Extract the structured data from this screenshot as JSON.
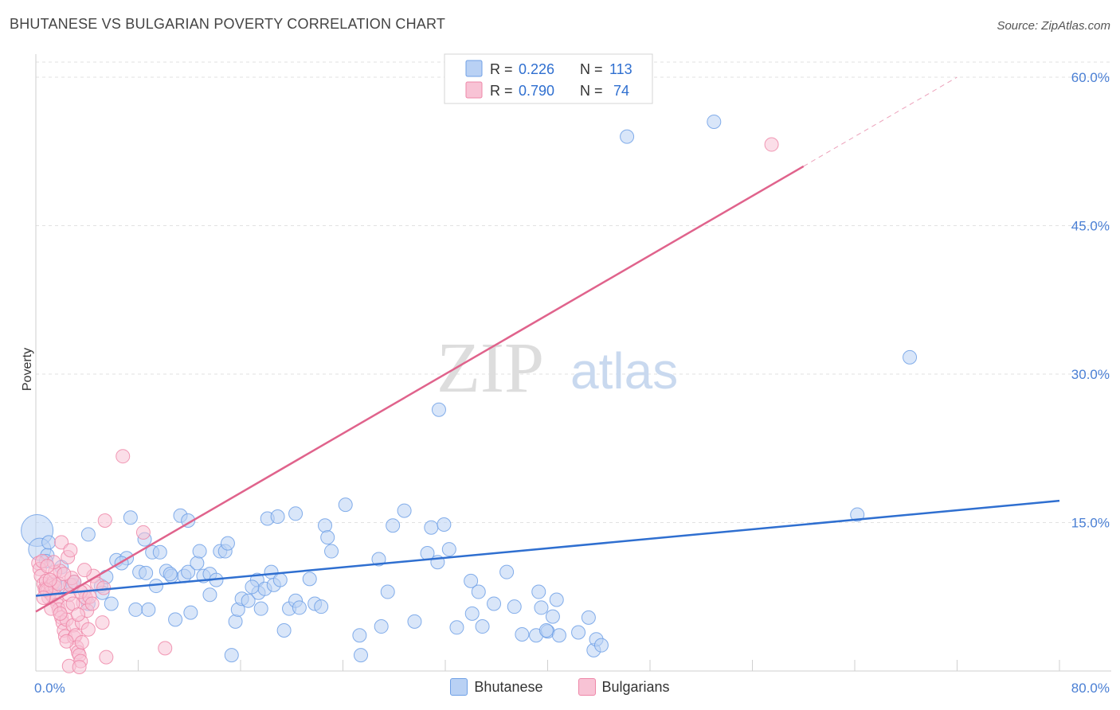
{
  "header": {
    "title": "BHUTANESE VS BULGARIAN POVERTY CORRELATION CHART",
    "source": "Source: ZipAtlas.com"
  },
  "watermark": {
    "zip": "ZIP",
    "atlas": "atlas"
  },
  "colors": {
    "blue": "#6fa0e6",
    "blue_fill": "#b9d1f4",
    "blue_line": "#2f6fd0",
    "pink": "#ee87a8",
    "pink_fill": "#f8c3d5",
    "pink_line": "#e0638c",
    "tick_text": "#4a7fd4"
  },
  "legend": {
    "series": [
      {
        "name": "Bhutanese",
        "r_label": "R =",
        "r_value": "0.226",
        "n_label": "N =",
        "n_value": "113"
      },
      {
        "name": "Bulgarians",
        "r_label": "R =",
        "r_value": "0.790",
        "n_label": "N =",
        "n_value": "74"
      }
    ]
  },
  "chart_data": {
    "type": "scatter",
    "title": "BHUTANESE VS BULGARIAN POVERTY CORRELATION CHART",
    "xlabel": "",
    "ylabel": "Poverty",
    "xlim": [
      0,
      80
    ],
    "ylim": [
      0,
      60
    ],
    "x_ticks": [
      {
        "value": 0,
        "label": "0.0%"
      },
      {
        "value": 80,
        "label": "80.0%"
      }
    ],
    "y_ticks": [
      {
        "value": 15,
        "label": "15.0%"
      },
      {
        "value": 30,
        "label": "30.0%"
      },
      {
        "value": 45,
        "label": "45.0%"
      },
      {
        "value": 60,
        "label": "60.0%"
      }
    ],
    "series": [
      {
        "name": "Bhutanese",
        "r": 0.226,
        "n": 113,
        "trend": {
          "x0": 0,
          "y0": 7.6,
          "x1": 80,
          "y1": 17.2
        },
        "points": [
          [
            0.1,
            14.2
          ],
          [
            0.3,
            12.3
          ],
          [
            0.9,
            11.7
          ],
          [
            0.8,
            11.1
          ],
          [
            2.3,
            8.5
          ],
          [
            1.5,
            8.8
          ],
          [
            2.9,
            8.7
          ],
          [
            4.1,
            6.8
          ],
          [
            4.1,
            13.8
          ],
          [
            5.1,
            8.6
          ],
          [
            5.9,
            6.8
          ],
          [
            5.2,
            7.9
          ],
          [
            6.3,
            11.2
          ],
          [
            7.1,
            11.4
          ],
          [
            6.7,
            10.9
          ],
          [
            7.4,
            15.5
          ],
          [
            7.8,
            6.2
          ],
          [
            8.1,
            10.0
          ],
          [
            8.6,
            9.9
          ],
          [
            8.8,
            6.2
          ],
          [
            9.1,
            12.0
          ],
          [
            9.7,
            12.0
          ],
          [
            9.4,
            8.6
          ],
          [
            10.2,
            10.1
          ],
          [
            10.6,
            9.6
          ],
          [
            10.9,
            5.2
          ],
          [
            11.6,
            9.6
          ],
          [
            11.9,
            10.0
          ],
          [
            12.1,
            5.9
          ],
          [
            11.3,
            15.7
          ],
          [
            11.9,
            15.2
          ],
          [
            12.6,
            10.9
          ],
          [
            12.8,
            12.1
          ],
          [
            13.1,
            9.6
          ],
          [
            13.6,
            9.8
          ],
          [
            13.6,
            7.7
          ],
          [
            14.1,
            9.2
          ],
          [
            14.4,
            12.1
          ],
          [
            14.8,
            12.1
          ],
          [
            15.0,
            12.9
          ],
          [
            15.3,
            1.6
          ],
          [
            15.6,
            5.0
          ],
          [
            15.8,
            6.2
          ],
          [
            16.1,
            7.3
          ],
          [
            16.6,
            7.1
          ],
          [
            17.3,
            9.2
          ],
          [
            17.4,
            7.9
          ],
          [
            17.6,
            6.3
          ],
          [
            17.9,
            8.3
          ],
          [
            18.1,
            15.4
          ],
          [
            18.4,
            10.0
          ],
          [
            18.9,
            15.6
          ],
          [
            18.6,
            8.7
          ],
          [
            19.1,
            9.2
          ],
          [
            19.4,
            4.1
          ],
          [
            19.8,
            6.3
          ],
          [
            20.3,
            7.1
          ],
          [
            20.6,
            6.4
          ],
          [
            20.3,
            15.9
          ],
          [
            21.4,
            9.3
          ],
          [
            21.8,
            6.8
          ],
          [
            22.3,
            6.5
          ],
          [
            22.6,
            14.7
          ],
          [
            22.8,
            13.5
          ],
          [
            23.1,
            12.1
          ],
          [
            24.2,
            16.8
          ],
          [
            25.3,
            3.6
          ],
          [
            25.4,
            1.6
          ],
          [
            26.8,
            11.3
          ],
          [
            27.0,
            4.5
          ],
          [
            27.5,
            8.0
          ],
          [
            27.9,
            14.7
          ],
          [
            28.8,
            16.2
          ],
          [
            29.6,
            5.0
          ],
          [
            30.6,
            11.9
          ],
          [
            30.9,
            14.5
          ],
          [
            31.4,
            11.0
          ],
          [
            31.5,
            26.4
          ],
          [
            31.9,
            14.8
          ],
          [
            32.3,
            12.3
          ],
          [
            32.9,
            4.4
          ],
          [
            34.1,
            5.8
          ],
          [
            34.0,
            9.1
          ],
          [
            34.6,
            8.0
          ],
          [
            34.9,
            4.5
          ],
          [
            35.8,
            6.8
          ],
          [
            36.8,
            10.0
          ],
          [
            37.4,
            6.5
          ],
          [
            38.0,
            3.7
          ],
          [
            39.1,
            3.6
          ],
          [
            39.5,
            6.4
          ],
          [
            39.3,
            8.0
          ],
          [
            40.0,
            4.0
          ],
          [
            40.7,
            7.2
          ],
          [
            40.9,
            3.6
          ],
          [
            39.9,
            4.1
          ],
          [
            40.4,
            5.5
          ],
          [
            42.4,
            3.9
          ],
          [
            43.6,
            2.1
          ],
          [
            43.2,
            5.4
          ],
          [
            43.8,
            3.2
          ],
          [
            44.2,
            2.6
          ],
          [
            46.2,
            54.0
          ],
          [
            53.0,
            55.5
          ],
          [
            68.3,
            31.7
          ],
          [
            64.2,
            15.8
          ],
          [
            1.0,
            13.0
          ],
          [
            2.0,
            10.5
          ],
          [
            3.0,
            9.0
          ],
          [
            5.5,
            9.5
          ],
          [
            8.5,
            13.3
          ],
          [
            10.5,
            9.8
          ],
          [
            16.9,
            8.5
          ]
        ]
      },
      {
        "name": "Bulgarians",
        "r": 0.79,
        "n": 74,
        "trend": {
          "x0": 0,
          "y0": 6.0,
          "x1": 60,
          "y1": 51.0,
          "x_ext": 72,
          "y_ext": 60
        },
        "points": [
          [
            0.2,
            10.9
          ],
          [
            0.3,
            10.3
          ],
          [
            0.4,
            9.6
          ],
          [
            0.5,
            11.1
          ],
          [
            0.6,
            8.8
          ],
          [
            0.7,
            8.3
          ],
          [
            0.8,
            9.1
          ],
          [
            0.9,
            8.1
          ],
          [
            1.0,
            7.4
          ],
          [
            1.1,
            7.9
          ],
          [
            1.2,
            8.6
          ],
          [
            1.3,
            7.6
          ],
          [
            1.4,
            9.0
          ],
          [
            1.5,
            8.5
          ],
          [
            1.6,
            7.2
          ],
          [
            1.7,
            6.7
          ],
          [
            1.8,
            6.2
          ],
          [
            1.9,
            10.1
          ],
          [
            2.0,
            5.4
          ],
          [
            2.1,
            4.9
          ],
          [
            2.2,
            4.1
          ],
          [
            2.3,
            3.5
          ],
          [
            2.4,
            5.2
          ],
          [
            2.5,
            6.5
          ],
          [
            2.6,
            7.7
          ],
          [
            2.7,
            8.7
          ],
          [
            2.8,
            9.4
          ],
          [
            2.9,
            4.6
          ],
          [
            3.0,
            3.4
          ],
          [
            3.1,
            3.6
          ],
          [
            3.2,
            2.4
          ],
          [
            3.3,
            1.9
          ],
          [
            3.4,
            1.6
          ],
          [
            3.5,
            1.0
          ],
          [
            3.6,
            4.9
          ],
          [
            3.7,
            6.9
          ],
          [
            3.8,
            8.1
          ],
          [
            3.9,
            7.4
          ],
          [
            4.0,
            6.1
          ],
          [
            4.5,
            9.6
          ],
          [
            4.8,
            8.8
          ],
          [
            5.2,
            4.9
          ],
          [
            5.3,
            8.4
          ],
          [
            5.5,
            1.4
          ],
          [
            5.4,
            15.2
          ],
          [
            6.8,
            21.7
          ],
          [
            8.4,
            14.0
          ],
          [
            10.1,
            2.3
          ],
          [
            57.5,
            53.2
          ],
          [
            2.0,
            13.0
          ],
          [
            2.5,
            11.5
          ],
          [
            1.5,
            10.0
          ],
          [
            3.0,
            9.0
          ],
          [
            3.5,
            8.0
          ],
          [
            4.2,
            7.5
          ],
          [
            1.2,
            6.3
          ],
          [
            0.8,
            8.2
          ],
          [
            1.8,
            8.8
          ],
          [
            2.2,
            9.8
          ],
          [
            3.8,
            10.2
          ],
          [
            2.7,
            12.2
          ],
          [
            1.4,
            11.0
          ],
          [
            0.6,
            7.4
          ],
          [
            2.9,
            6.8
          ],
          [
            3.3,
            5.7
          ],
          [
            4.1,
            4.2
          ],
          [
            1.9,
            5.8
          ],
          [
            2.4,
            3.0
          ],
          [
            3.6,
            2.9
          ],
          [
            4.4,
            6.8
          ],
          [
            1.1,
            9.2
          ],
          [
            0.9,
            10.6
          ],
          [
            2.6,
            0.5
          ],
          [
            3.4,
            0.4
          ]
        ]
      }
    ],
    "legend_position": "top-center"
  }
}
